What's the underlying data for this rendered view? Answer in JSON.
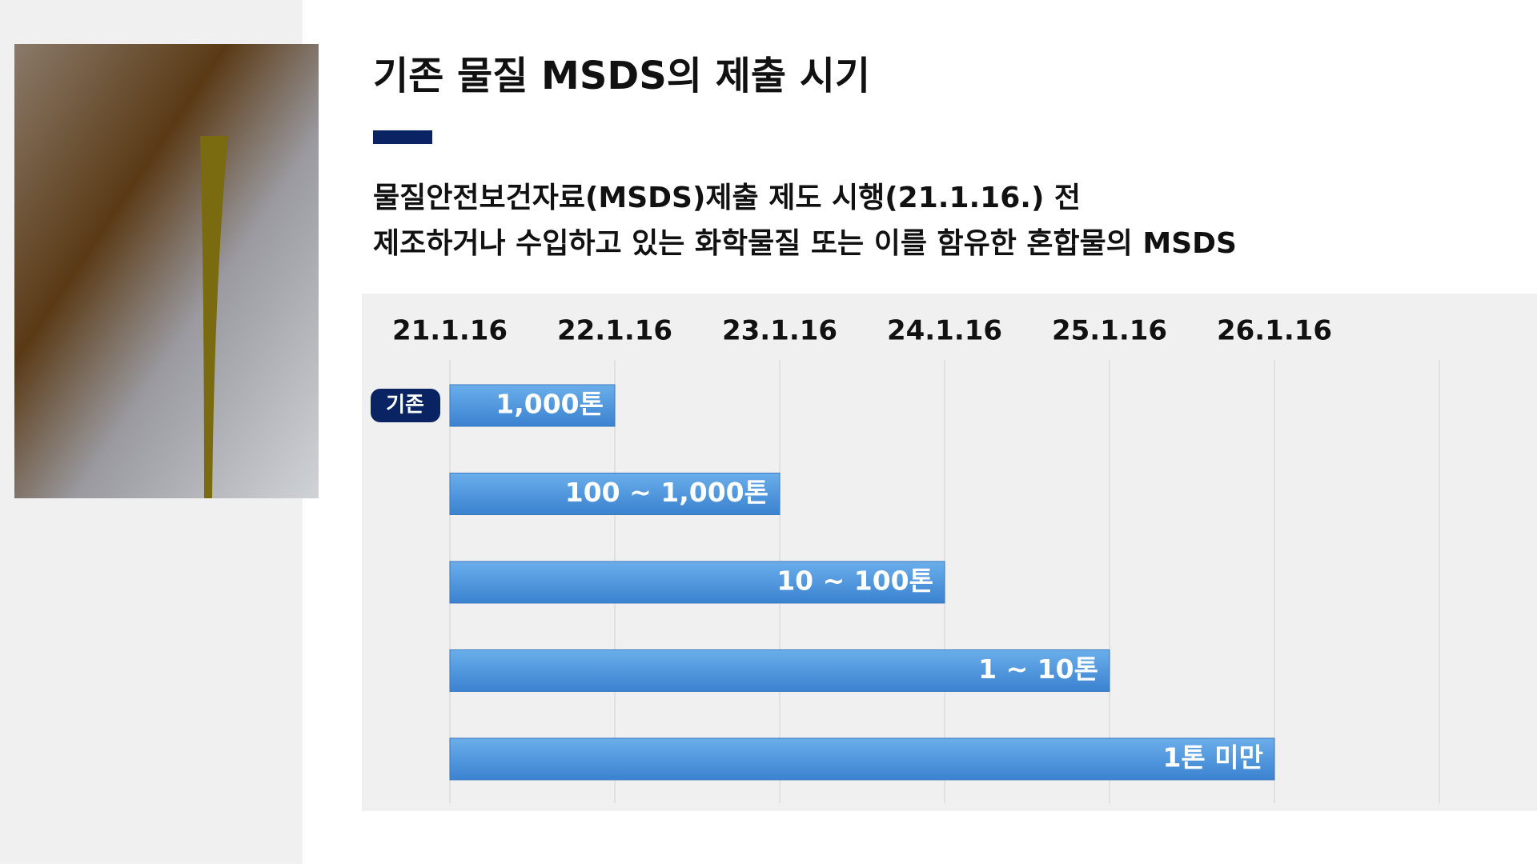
{
  "chart_data": {
    "type": "timeline-bar",
    "title": "기존 물질 MSDS의 제출 시기",
    "subtitle": [
      "물질안전보건자료(MSDS)제출 제도 시행(21.1.16.) 전",
      "제조하거나 수입하고 있는 화학물질 또는 이를 함유한 혼합물의 MSDS"
    ],
    "dates": [
      "21.1.16",
      "22.1.16",
      "23.1.16",
      "24.1.16",
      "25.1.16",
      "26.1.16",
      null
    ],
    "bars": [
      {
        "label": "1,000톤",
        "start": "21.1.16",
        "end": "22.1.16",
        "tag": "기존"
      },
      {
        "label": "100 ~ 1,000톤",
        "start": "21.1.16",
        "end": "23.1.16"
      },
      {
        "label": "10 ~ 100톤",
        "start": "21.1.16",
        "end": "24.1.16"
      },
      {
        "label": "1 ~ 10톤",
        "start": "21.1.16",
        "end": "25.1.16"
      },
      {
        "label": "1톤 미만",
        "start": "21.1.16",
        "end": "26.1.16"
      }
    ],
    "color": "#4a90dc",
    "grid": true
  }
}
